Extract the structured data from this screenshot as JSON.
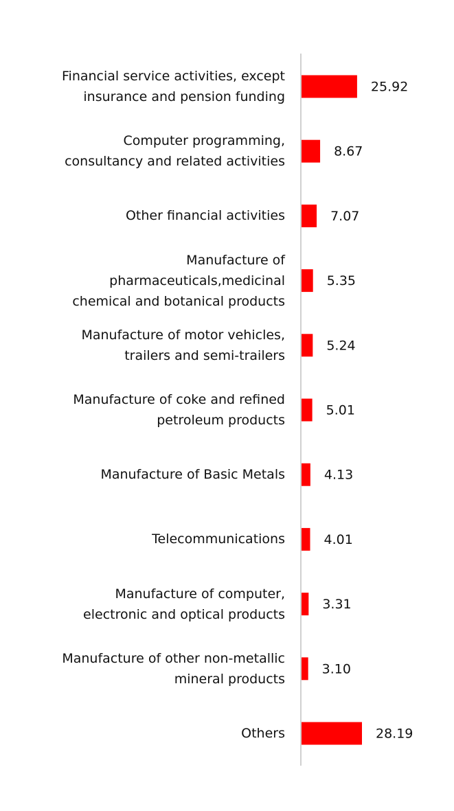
{
  "chart_data": {
    "type": "hbar",
    "categories": [
      "Financial service activities, except\ninsurance and pension funding",
      "Computer programming,\nconsultancy and related activities",
      "Other financial activities",
      "Manufacture of\npharmaceuticals,medicinal\nchemical and botanical products",
      "Manufacture of motor vehicles,\ntrailers and semi-trailers",
      "Manufacture of coke and refined\npetroleum products",
      "Manufacture of Basic Metals",
      "Telecommunications",
      "Manufacture of computer,\nelectronic and optical products",
      "Manufacture of other non-metallic\nmineral products",
      "Others"
    ],
    "values": [
      25.92,
      8.67,
      7.07,
      5.35,
      5.24,
      5.01,
      4.13,
      4.01,
      3.31,
      3.1,
      28.19
    ],
    "value_labels": [
      "25.92",
      "8.67",
      "7.07",
      "5.35",
      "5.24",
      "5.01",
      "4.13",
      "4.01",
      "3.31",
      "3.10",
      "28.19"
    ],
    "color": "#ff0000"
  }
}
